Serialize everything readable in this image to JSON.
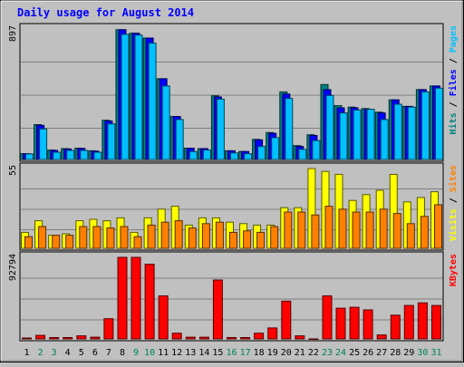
{
  "chart_data": {
    "type": "bar",
    "title": "Daily usage for August 2014",
    "categories": [
      "1",
      "2",
      "3",
      "4",
      "5",
      "6",
      "7",
      "8",
      "9",
      "10",
      "11",
      "12",
      "13",
      "14",
      "15",
      "16",
      "17",
      "18",
      "19",
      "20",
      "21",
      "22",
      "23",
      "24",
      "25",
      "26",
      "27",
      "28",
      "29",
      "30",
      "31"
    ],
    "weekend_days": [
      2,
      3,
      9,
      10,
      16,
      17,
      23,
      24,
      30,
      31
    ],
    "panels": [
      {
        "ymax_label": "897",
        "ymax": 897,
        "legend": [
          {
            "name": "Hits",
            "color": "#008080"
          },
          {
            "name": "Files",
            "color": "#0000ff"
          },
          {
            "name": "Pages",
            "color": "#00c0ff"
          }
        ],
        "series": [
          {
            "name": "Hits",
            "color": "#008080",
            "values": [
              40,
              240,
              65,
              75,
              78,
              60,
              270,
              892,
              868,
              835,
              555,
              295,
              78,
              75,
              438,
              60,
              55,
              138,
              185,
              465,
              95,
              170,
              515,
              370,
              360,
              350,
              325,
              410,
              365,
              480,
              505
            ]
          },
          {
            "name": "Files",
            "color": "#0000ff",
            "values": [
              40,
              235,
              62,
              72,
              76,
              58,
              265,
              892,
              868,
              835,
              555,
              295,
              78,
              75,
              430,
              60,
              55,
              135,
              180,
              450,
              90,
              165,
              480,
              355,
              355,
              345,
              320,
              410,
              365,
              480,
              505
            ]
          },
          {
            "name": "Pages",
            "color": "#00c0ff",
            "values": [
              38,
              210,
              50,
              62,
              62,
              50,
              245,
              860,
              855,
              800,
              505,
              275,
              55,
              65,
              415,
              45,
              40,
              90,
              150,
              420,
              70,
              130,
              440,
              320,
              340,
              345,
              275,
              380,
              360,
              465,
              490
            ]
          }
        ]
      },
      {
        "ymax_label": "55",
        "ymax": 55,
        "legend": [
          {
            "name": "Visits",
            "color": "#ffff00"
          },
          {
            "name": "Sites",
            "color": "#ff8000"
          }
        ],
        "series": [
          {
            "name": "Visits",
            "color": "#ffff00",
            "values": [
              11,
              19,
              9,
              10,
              19,
              20,
              19,
              21,
              11,
              21,
              27,
              29,
              16,
              21,
              21,
              18,
              17,
              16,
              16,
              28,
              28,
              55,
              53,
              51,
              33,
              37,
              40,
              51,
              32,
              35,
              39
            ]
          },
          {
            "name": "Sites",
            "color": "#ff8000",
            "values": [
              8,
              15,
              9,
              9,
              15,
              15,
              14,
              15,
              8,
              16,
              18,
              19,
              14,
              17,
              18,
              11,
              12,
              11,
              15,
              25,
              25,
              23,
              29,
              27,
              25,
              25,
              27,
              24,
              17,
              22,
              30
            ]
          }
        ]
      },
      {
        "ymax_label": "92794",
        "ymax": 92794,
        "legend": [
          {
            "name": "KBytes",
            "color": "#ff0000"
          }
        ],
        "series": [
          {
            "name": "KBytes",
            "color": "#ff0000",
            "values": [
              1000,
              4000,
              1500,
              1500,
              3500,
              2000,
              23000,
              92794,
              92794,
              85000,
              49000,
              6500,
              2000,
              2000,
              67000,
              1500,
              1500,
              6500,
              12500,
              43000,
              3500,
              0,
              49000,
              35000,
              36000,
              33000,
              4500,
              27000,
              38000,
              41000,
              38000
            ]
          }
        ]
      }
    ]
  },
  "colors": {
    "background": "#c0c0c0",
    "plot_bg": "#c0c0c0",
    "weekday_tick": "#000000",
    "weekend_tick": "#00805c",
    "title": "#0000ff"
  }
}
